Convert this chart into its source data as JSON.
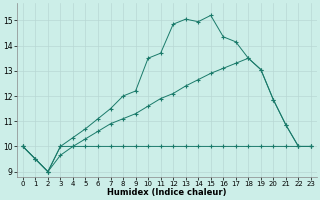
{
  "xlabel": "Humidex (Indice chaleur)",
  "bg_color": "#cceee8",
  "grid_color": "#b8d8d4",
  "line_color": "#1a7a6a",
  "xlim": [
    -0.5,
    23.5
  ],
  "ylim": [
    8.8,
    15.7
  ],
  "yticks": [
    9,
    10,
    11,
    12,
    13,
    14,
    15
  ],
  "xticks": [
    0,
    1,
    2,
    3,
    4,
    5,
    6,
    7,
    8,
    9,
    10,
    11,
    12,
    13,
    14,
    15,
    16,
    17,
    18,
    19,
    20,
    21,
    22,
    23
  ],
  "line1_x": [
    0,
    1,
    2,
    3,
    4,
    5,
    6,
    7,
    8,
    9,
    10,
    11,
    12,
    13,
    14,
    15,
    16,
    17,
    18,
    19,
    20,
    21,
    22,
    23
  ],
  "line1_y": [
    10.0,
    9.5,
    9.0,
    10.0,
    10.0,
    10.0,
    10.0,
    10.0,
    10.0,
    10.0,
    10.0,
    10.0,
    10.0,
    10.0,
    10.0,
    10.0,
    10.0,
    10.0,
    10.0,
    10.0,
    10.0,
    10.0,
    10.0,
    10.0
  ],
  "line2_x": [
    0,
    1,
    2,
    3,
    4,
    5,
    6,
    7,
    8,
    9,
    10,
    11,
    12,
    13,
    14,
    15,
    16,
    17,
    18,
    19,
    20,
    21,
    22,
    23
  ],
  "line2_y": [
    10.0,
    9.5,
    9.0,
    10.0,
    10.35,
    10.7,
    11.1,
    11.5,
    12.0,
    12.2,
    13.5,
    13.7,
    14.85,
    15.05,
    14.95,
    15.2,
    14.35,
    14.15,
    13.5,
    13.05,
    11.85,
    10.85,
    10.0,
    10.0
  ],
  "line3_x": [
    0,
    1,
    2,
    3,
    4,
    5,
    6,
    7,
    8,
    9,
    10,
    11,
    12,
    13,
    14,
    15,
    16,
    17,
    18,
    19,
    20,
    21,
    22,
    23
  ],
  "line3_y": [
    10.0,
    9.5,
    9.0,
    9.65,
    10.0,
    10.3,
    10.6,
    10.9,
    11.1,
    11.3,
    11.6,
    11.9,
    12.1,
    12.4,
    12.65,
    12.9,
    13.1,
    13.3,
    13.5,
    13.05,
    11.85,
    10.85,
    10.0,
    10.0
  ]
}
